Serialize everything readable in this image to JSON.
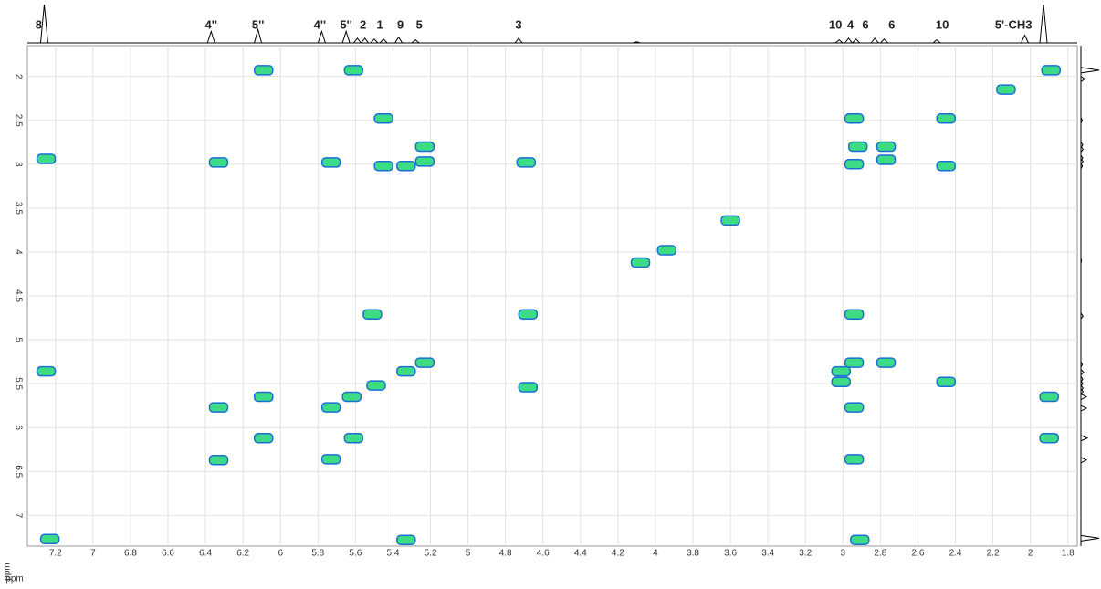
{
  "chart_data": {
    "type": "cosy",
    "x_label": "ppm",
    "y_label": "ppm",
    "xlim": [
      7.35,
      1.75
    ],
    "ylim": [
      1.65,
      7.35
    ],
    "xticks": [
      7.2,
      7,
      6.8,
      6.6,
      6.4,
      6.2,
      6,
      5.8,
      5.6,
      5.4,
      5.2,
      5,
      4.8,
      4.6,
      4.4,
      4.2,
      4,
      3.8,
      3.6,
      3.4,
      3.2,
      3,
      2.8,
      2.6,
      2.4,
      2.2,
      2,
      1.8
    ],
    "yticks": [
      2,
      2.5,
      3,
      3.5,
      4,
      4.5,
      5,
      5.5,
      6,
      6.5,
      7
    ],
    "grid": true,
    "peak_color": "#3ddc84",
    "contour_color": "#1a6fd6",
    "trace_color": "#000000",
    "proton_peaks": {
      "ppm": [
        7.26,
        6.37,
        6.12,
        5.78,
        5.65,
        5.59,
        5.55,
        5.5,
        5.45,
        5.37,
        5.28,
        4.73,
        4.1,
        3.02,
        2.97,
        2.93,
        2.83,
        2.78,
        2.5,
        2.03,
        1.93
      ],
      "height": [
        100,
        30,
        35,
        30,
        30,
        12,
        12,
        10,
        10,
        15,
        8,
        12,
        3,
        8,
        12,
        10,
        12,
        10,
        8,
        20,
        100
      ]
    },
    "peak_labels": {
      "texts": [
        "8",
        "4''",
        "5''",
        "4''",
        "5''",
        "2",
        "1",
        "9",
        "5",
        "3",
        "10",
        "4",
        "6",
        "6",
        "10",
        "5'-CH3"
      ],
      "ppm": [
        7.29,
        6.37,
        6.12,
        5.79,
        5.65,
        5.56,
        5.47,
        5.36,
        5.26,
        4.73,
        3.04,
        2.96,
        2.88,
        2.74,
        2.47,
        2.09
      ]
    },
    "cross_peaks": {
      "x": [
        6.09,
        5.61,
        5.45,
        2.94,
        2.45,
        5.23,
        2.92,
        2.77,
        7.25,
        6.33,
        5.73,
        5.45,
        5.33,
        5.23,
        4.69,
        2.94,
        2.77,
        2.45,
        5.51,
        4.68,
        2.94,
        7.25,
        5.33,
        5.23,
        2.94,
        2.77,
        3.01,
        5.49,
        4.68,
        3.01,
        2.45,
        6.09,
        1.9,
        6.33,
        2.94,
        5.61,
        1.9,
        5.73,
        2.94,
        5.33,
        2.91,
        7.23,
        6.33,
        6.09,
        5.73,
        5.62,
        4.08,
        3.94,
        3.6,
        2.13,
        1.89
      ],
      "y": [
        1.93,
        1.93,
        2.48,
        2.48,
        2.48,
        2.8,
        2.8,
        2.8,
        2.94,
        2.98,
        2.98,
        3.02,
        3.02,
        2.97,
        2.98,
        3.0,
        2.95,
        3.02,
        4.71,
        4.71,
        4.71,
        5.36,
        5.36,
        5.26,
        5.26,
        5.26,
        5.36,
        5.52,
        5.54,
        5.48,
        5.48,
        5.65,
        5.65,
        5.77,
        5.77,
        6.12,
        6.12,
        6.36,
        6.36,
        7.28,
        7.28,
        7.27,
        6.37,
        6.12,
        5.77,
        5.65,
        4.12,
        3.98,
        3.64,
        2.15,
        1.93
      ]
    }
  }
}
